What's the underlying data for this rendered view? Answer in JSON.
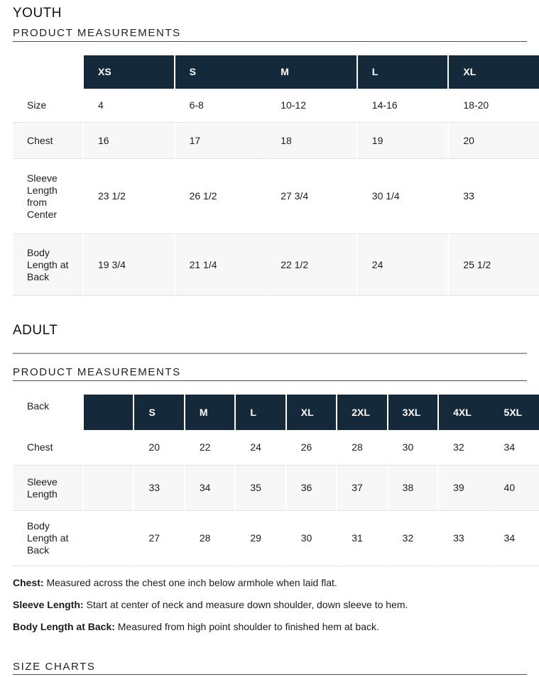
{
  "colors": {
    "header_bg": "#14293a",
    "alt_row_bg": "#f7f7f7",
    "row_divider": "#e2e2e2",
    "heading_underline": "#4a4a4a",
    "section_rule": "#a5a5a5",
    "header_text": "#ffffff"
  },
  "youth": {
    "title": "YOUTH",
    "section_title": "PRODUCT MEASUREMENTS",
    "table": {
      "corner_label": "",
      "columns": [
        "XS",
        "S",
        "M",
        "L",
        "XL"
      ],
      "rows": [
        {
          "label": "Size",
          "values": [
            "4",
            "6-8",
            "10-12",
            "14-16",
            "18-20"
          ]
        },
        {
          "label": "Chest",
          "values": [
            "16",
            "17",
            "18",
            "19",
            "20"
          ]
        },
        {
          "label": "Sleeve Length from Center",
          "values": [
            "23 1/2",
            "26 1/2",
            "27 3/4",
            "30 1/4",
            "33"
          ]
        },
        {
          "label": "Body Length at Back",
          "values": [
            "19 3/4",
            "21 1/4",
            "22 1/2",
            "24",
            "25 1/2"
          ]
        }
      ]
    }
  },
  "adult": {
    "title": "ADULT",
    "section_title": "PRODUCT MEASUREMENTS",
    "table": {
      "corner_label": "Back",
      "columns": [
        "",
        "S",
        "M",
        "L",
        "XL",
        "2XL",
        "3XL",
        "4XL",
        "5XL"
      ],
      "rows": [
        {
          "label": "Chest",
          "values": [
            "20",
            "22",
            "24",
            "26",
            "28",
            "30",
            "32",
            "34"
          ]
        },
        {
          "label": "Sleeve Length",
          "values": [
            "33",
            "34",
            "35",
            "36",
            "37",
            "38",
            "39",
            "40"
          ]
        },
        {
          "label": "Body Length at Back",
          "values": [
            "27",
            "28",
            "29",
            "30",
            "31",
            "32",
            "33",
            "34"
          ]
        }
      ]
    }
  },
  "notes": [
    {
      "term": "Chest:",
      "text": "Measured across the chest one inch below armhole when laid flat."
    },
    {
      "term": "Sleeve Length:",
      "text": "Start at center of neck and measure down shoulder, down sleeve to hem."
    },
    {
      "term": "Body Length at Back:",
      "text": "Measured from high point shoulder to finished hem at back."
    }
  ],
  "footer_title": "SIZE CHARTS"
}
